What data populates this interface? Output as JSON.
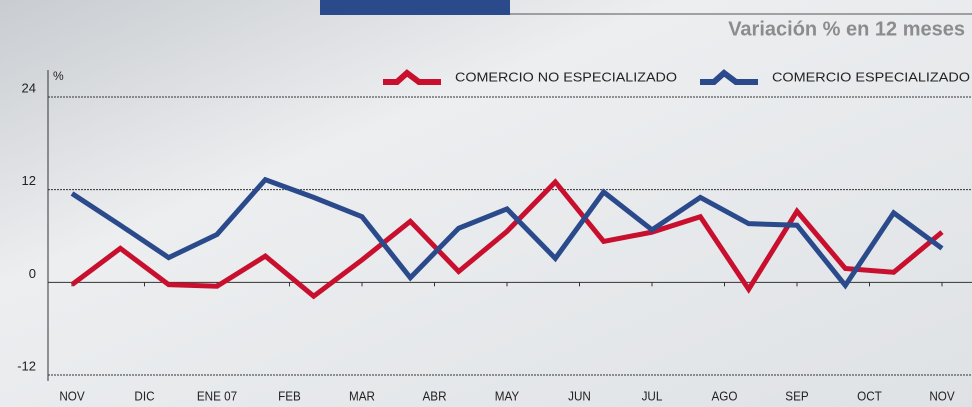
{
  "chart_data": {
    "type": "line",
    "title": "Variación % en 12 meses",
    "y_label": "%",
    "x": [
      0,
      1,
      2,
      3,
      4,
      5,
      6,
      7,
      8,
      9,
      10,
      11,
      12,
      13,
      14,
      15,
      16,
      17,
      18
    ],
    "xlim": [
      0,
      18
    ],
    "xticks": [
      {
        "value": 0,
        "label": "NOV"
      },
      {
        "value": 1.5,
        "label": "DIC"
      },
      {
        "value": 3,
        "label": "ENE 07"
      },
      {
        "value": 4.5,
        "label": "FEB"
      },
      {
        "value": 6,
        "label": "MAR"
      },
      {
        "value": 7.5,
        "label": "ABR"
      },
      {
        "value": 9,
        "label": "MAY"
      },
      {
        "value": 10.5,
        "label": "JUN"
      },
      {
        "value": 12,
        "label": "JUL"
      },
      {
        "value": 13.5,
        "label": "AGO"
      },
      {
        "value": 15,
        "label": "SEP"
      },
      {
        "value": 16.5,
        "label": "OCT"
      },
      {
        "value": 18,
        "label": "NOV"
      }
    ],
    "ylim": [
      -12,
      24
    ],
    "yticks": [
      -12,
      0,
      12,
      24
    ],
    "grid": true,
    "legend": "top-right",
    "series": [
      {
        "name": "COMERCIO NO ESPECIALIZADO",
        "color": "#c8102e",
        "values": [
          -0.3,
          4.4,
          -0.3,
          -0.5,
          3.4,
          -1.8,
          2.9,
          7.9,
          1.4,
          6.6,
          13.0,
          5.3,
          6.5,
          8.5,
          -0.9,
          9.2,
          1.8,
          1.3,
          6.5
        ]
      },
      {
        "name": "COMERCIO ESPECIALIZADO",
        "color": "#2b4a8b",
        "values": [
          11.5,
          7.4,
          3.2,
          6.2,
          13.3,
          11.0,
          8.5,
          0.6,
          7.0,
          9.5,
          3.1,
          11.7,
          6.8,
          11.0,
          7.6,
          7.4,
          -0.4,
          9.0,
          4.4
        ]
      }
    ]
  }
}
